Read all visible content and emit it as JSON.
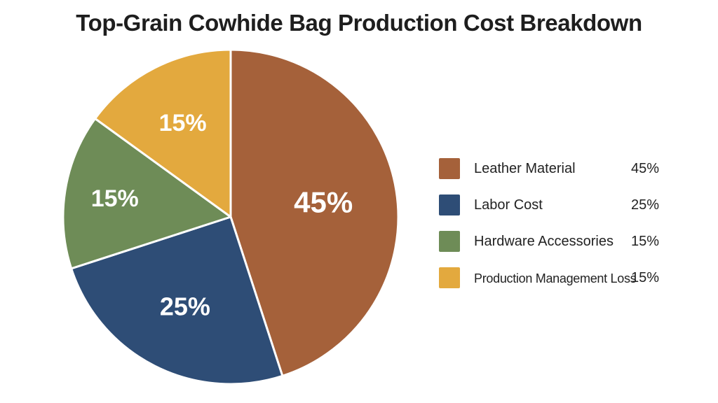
{
  "chart_data": {
    "type": "pie",
    "title": "Top-Grain Cowhide Bag Production Cost Breakdown",
    "categories": [
      "Leather Material",
      "Labor Cost",
      "Hardware Accessories",
      "Production Management Loss"
    ],
    "values": [
      45,
      25,
      15,
      15
    ],
    "slice_labels": [
      "45%",
      "25%",
      "15%",
      "15%"
    ],
    "colors": [
      "#A5613A",
      "#2E4D76",
      "#6E8C57",
      "#E3A93E"
    ],
    "legend_placement": "right",
    "legend_values": [
      "45%",
      "25%",
      "15%",
      "15%"
    ]
  }
}
